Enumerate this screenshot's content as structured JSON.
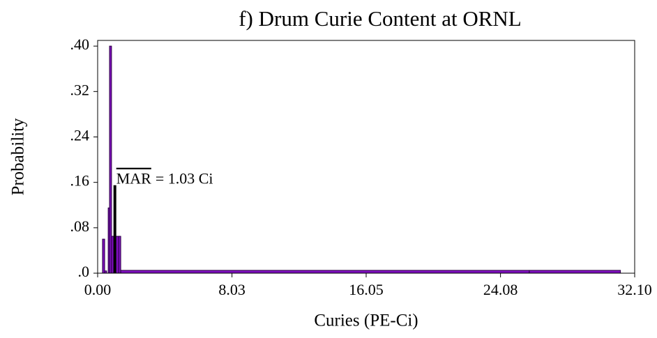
{
  "chart_data": {
    "type": "histogram",
    "title": "f) Drum Curie Content at ORNL",
    "x_label": "Curies (PE-Ci)",
    "y_label": "Probability",
    "bins": [
      0.29,
      0.42,
      0.54,
      0.63,
      0.71,
      0.83,
      0.96,
      1.08,
      1.25,
      1.38,
      25.8,
      31.25
    ],
    "values": [
      0.06,
      0.004,
      0,
      0.115,
      0.4,
      0.065,
      0.065,
      0.065,
      0.065,
      0.005,
      0.005
    ],
    "color": "#7f0fbf",
    "xlim": [
      0,
      32.1
    ],
    "ylim": [
      0,
      0.41
    ],
    "xticks": [
      {
        "value": 0,
        "label": "0.00"
      },
      8.03,
      16.05,
      24.08,
      {
        "value": 32.1,
        "label": "32.10"
      }
    ],
    "yticks": [
      {
        "value": 0,
        "label": ".0"
      },
      {
        "value": 0.08,
        "label": ".08"
      },
      {
        "value": 0.16,
        "label": ".16"
      },
      {
        "value": 0.24,
        "label": ".24"
      },
      {
        "value": 0.32,
        "label": ".32"
      },
      {
        "value": 0.4,
        "label": ".40"
      }
    ],
    "annotation": {
      "label": "MAR",
      "text": "= 1.03 Ci",
      "x": 1.03,
      "y": 0.155,
      "color": "#000000"
    }
  }
}
